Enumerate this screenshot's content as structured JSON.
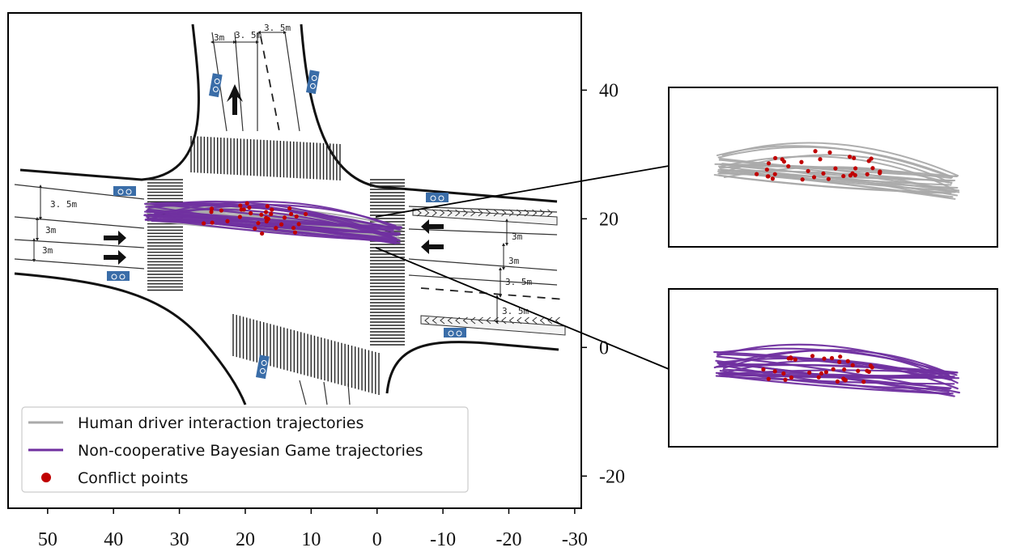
{
  "chart_data": {
    "type": "line",
    "x_ticks": [
      "50",
      "40",
      "30",
      "20",
      "10",
      "0",
      "-10",
      "-20",
      "-30"
    ],
    "x_tick_values": [
      50,
      40,
      30,
      20,
      10,
      0,
      -10,
      -20,
      -30
    ],
    "y_ticks": [
      "40",
      "20",
      "0",
      "-20"
    ],
    "y_tick_values": [
      40,
      20,
      0,
      -20
    ],
    "xlim": [
      56,
      -31
    ],
    "ylim": [
      -25,
      52
    ],
    "x_reversed": true,
    "legend": {
      "placement": "lower-left",
      "entries": [
        {
          "label": "Human driver interaction trajectories",
          "color": "#aaaaaa",
          "marker": "line"
        },
        {
          "label": "Non-cooperative Bayesian Game trajectories",
          "color": "#7030a0",
          "marker": "line"
        },
        {
          "label": "Conflict points",
          "color": "#c00000",
          "marker": "dot"
        }
      ]
    },
    "series": [
      {
        "name": "Human driver interaction trajectories",
        "color": "#aaaaaa",
        "count": 24
      },
      {
        "name": "Non-cooperative Bayesian Game trajectories",
        "color": "#7030a0",
        "count": 24
      },
      {
        "name": "Conflict points",
        "color": "#c00000",
        "count": 34
      }
    ],
    "lane_annotations": [
      "3m",
      "3. 5m",
      "3. 5m",
      "3. 5m",
      "3m",
      "3m",
      "3m",
      "3m",
      "3. 5m",
      "3. 5m"
    ],
    "insets": [
      {
        "name": "human-inset",
        "series": "Human driver interaction trajectories"
      },
      {
        "name": "game-inset",
        "series": "Non-cooperative Bayesian Game trajectories"
      }
    ]
  }
}
